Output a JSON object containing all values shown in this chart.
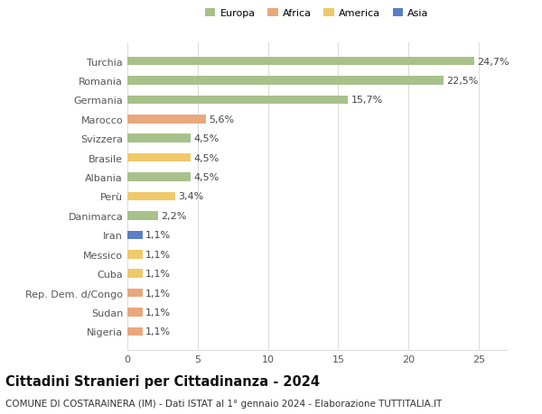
{
  "categories": [
    "Turchia",
    "Romania",
    "Germania",
    "Marocco",
    "Svizzera",
    "Brasile",
    "Albania",
    "Perù",
    "Danimarca",
    "Iran",
    "Messico",
    "Cuba",
    "Rep. Dem. d/Congo",
    "Sudan",
    "Nigeria"
  ],
  "values": [
    24.7,
    22.5,
    15.7,
    5.6,
    4.5,
    4.5,
    4.5,
    3.4,
    2.2,
    1.1,
    1.1,
    1.1,
    1.1,
    1.1,
    1.1
  ],
  "continents": [
    "Europa",
    "Europa",
    "Europa",
    "Africa",
    "Europa",
    "America",
    "Europa",
    "America",
    "Europa",
    "Asia",
    "America",
    "America",
    "Africa",
    "Africa",
    "Africa"
  ],
  "colors": {
    "Europa": "#a8c18a",
    "Africa": "#e8a87c",
    "America": "#f0c96a",
    "Asia": "#5b7ec4"
  },
  "legend_order": [
    "Europa",
    "Africa",
    "America",
    "Asia"
  ],
  "xlim": [
    0,
    27
  ],
  "xticks": [
    0,
    5,
    10,
    15,
    20,
    25
  ],
  "title": "Cittadini Stranieri per Cittadinanza - 2024",
  "subtitle": "COMUNE DI COSTARAINERA (IM) - Dati ISTAT al 1° gennaio 2024 - Elaborazione TUTTITALIA.IT",
  "bg_color": "#ffffff",
  "grid_color": "#dddddd",
  "bar_height": 0.45,
  "label_fontsize": 8,
  "tick_fontsize": 8,
  "title_fontsize": 10.5,
  "subtitle_fontsize": 7.5
}
